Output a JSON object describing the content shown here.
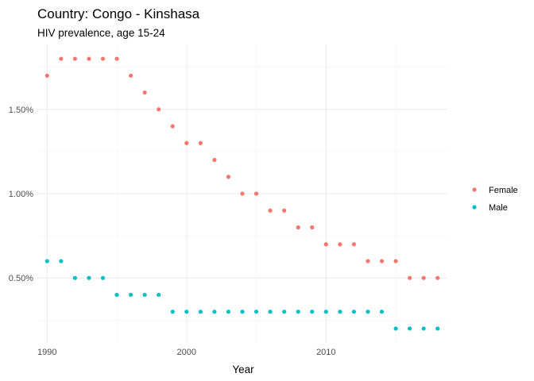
{
  "chart_data": {
    "type": "scatter",
    "title": "Country: Congo - Kinshasa",
    "subtitle": "HIV prevalence, age 15-24",
    "xlabel": "Year",
    "ylabel": "",
    "xlim": [
      1989.3,
      2018.7
    ],
    "ylim": [
      0.00115,
      0.01885
    ],
    "x_ticks": [
      1990,
      2000,
      2010
    ],
    "x_tick_labels": [
      "1990",
      "2000",
      "2010"
    ],
    "y_ticks": [
      0.005,
      0.01,
      0.015
    ],
    "y_tick_labels": [
      "0.50%",
      "1.00%",
      "1.50%"
    ],
    "grid": true,
    "legend_position": "right",
    "x": [
      1990,
      1991,
      1992,
      1993,
      1994,
      1995,
      1996,
      1997,
      1998,
      1999,
      2000,
      2001,
      2002,
      2003,
      2004,
      2005,
      2006,
      2007,
      2008,
      2009,
      2010,
      2011,
      2012,
      2013,
      2014,
      2015,
      2016,
      2017,
      2018
    ],
    "series": [
      {
        "name": "Female",
        "color": "#F8766D",
        "values": [
          0.017,
          0.018,
          0.018,
          0.018,
          0.018,
          0.018,
          0.017,
          0.016,
          0.015,
          0.014,
          0.013,
          0.013,
          0.012,
          0.011,
          0.01,
          0.01,
          0.009,
          0.009,
          0.008,
          0.008,
          0.007,
          0.007,
          0.007,
          0.006,
          0.006,
          0.006,
          0.005,
          0.005,
          0.005
        ]
      },
      {
        "name": "Male",
        "color": "#00BFC4",
        "values": [
          0.006,
          0.006,
          0.005,
          0.005,
          0.005,
          0.004,
          0.004,
          0.004,
          0.004,
          0.003,
          0.003,
          0.003,
          0.003,
          0.003,
          0.003,
          0.003,
          0.003,
          0.003,
          0.003,
          0.003,
          0.003,
          0.003,
          0.003,
          0.003,
          0.003,
          0.002,
          0.002,
          0.002,
          0.002
        ]
      }
    ]
  }
}
